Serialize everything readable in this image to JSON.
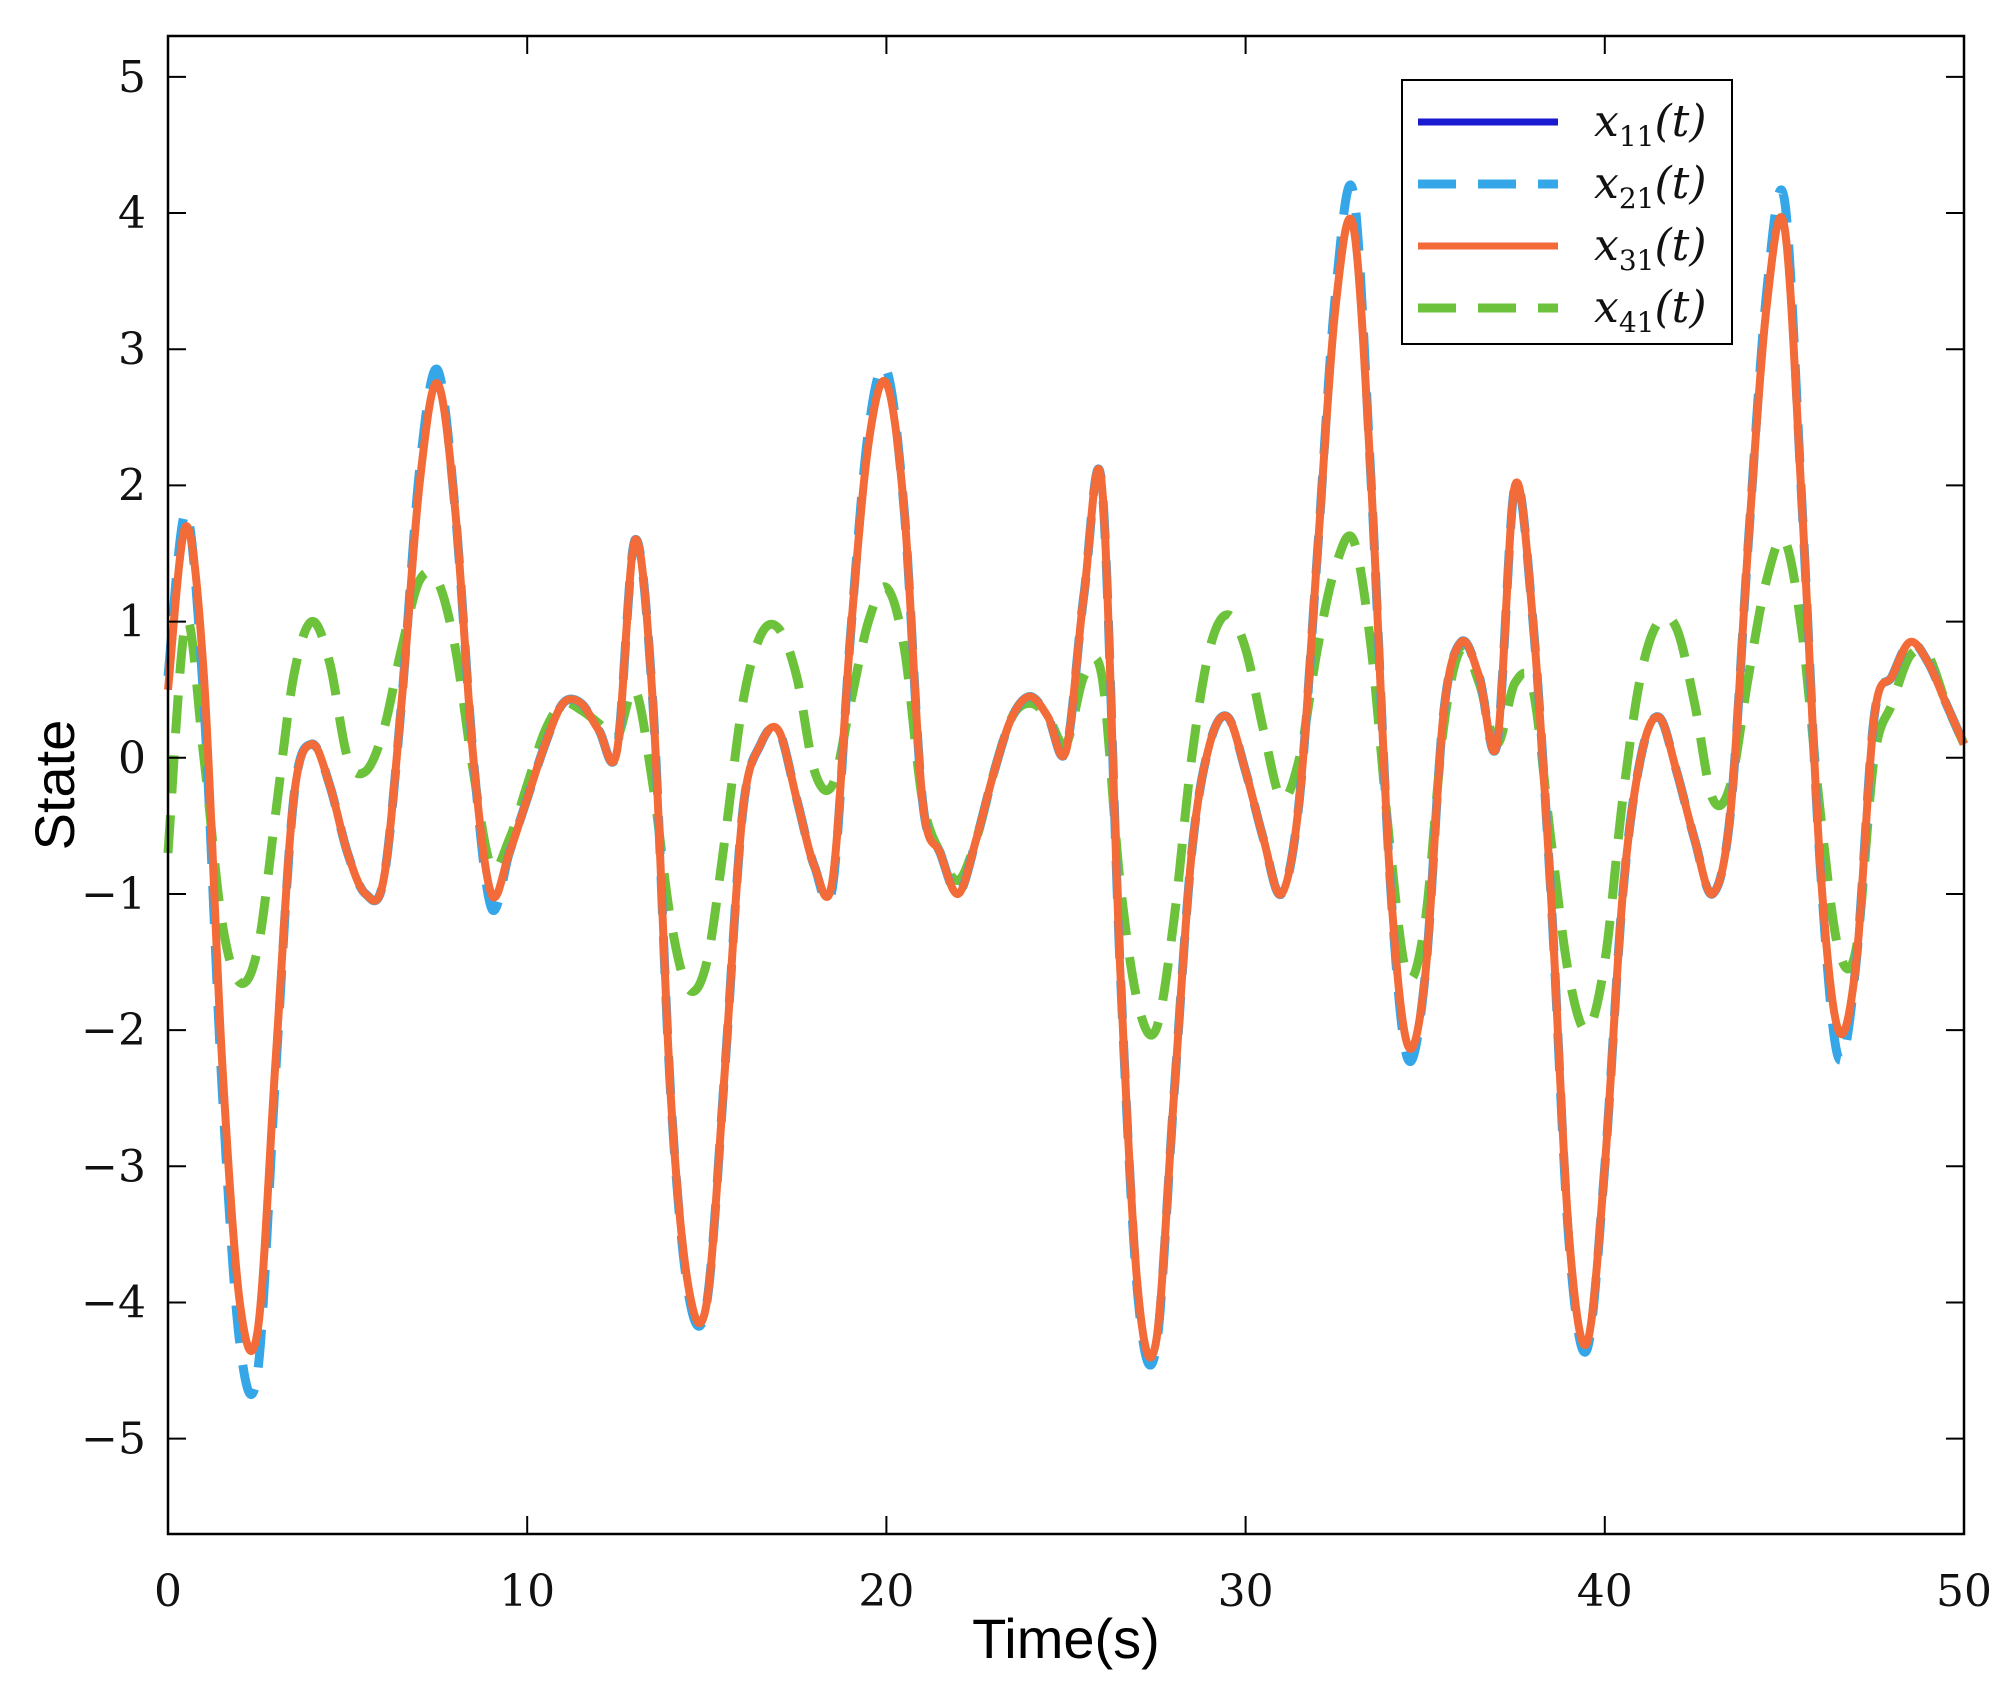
{
  "chart_data": {
    "type": "line",
    "title": "",
    "xlabel": "Time(s)",
    "ylabel": "State",
    "xlim": [
      0,
      50
    ],
    "ylim": [
      -5.7,
      5.3
    ],
    "xticks": [
      0,
      10,
      20,
      30,
      40,
      50
    ],
    "xtick_labels": [
      "0",
      "10",
      "20",
      "30",
      "40",
      "50"
    ],
    "yticks": [
      5,
      4,
      3,
      2,
      1,
      0,
      -1,
      -2,
      -3,
      -4,
      -5
    ],
    "ytick_labels": [
      "5",
      "4",
      "3",
      "2",
      "1",
      "0",
      "−1",
      "−2",
      "−3",
      "−4",
      "−5"
    ],
    "grid": false,
    "legend_position": "top-right",
    "x": [
      0,
      0.5,
      1,
      1.5,
      2,
      2.5,
      3,
      3.5,
      4,
      4.5,
      5,
      5.5,
      6,
      6.5,
      7,
      7.5,
      8,
      8.5,
      9,
      9.5,
      10,
      10.5,
      11,
      11.5,
      12,
      12.5,
      13,
      13.5,
      14,
      14.5,
      15,
      15.5,
      16,
      16.5,
      17,
      17.5,
      18,
      18.5,
      19,
      19.5,
      20,
      20.5,
      21,
      21.5,
      22,
      22.5,
      23,
      23.5,
      24,
      24.5,
      25,
      25.5,
      26,
      26.5,
      27,
      27.5,
      28,
      28.5,
      29,
      29.5,
      30,
      30.5,
      31,
      31.5,
      32,
      32.5,
      33,
      33.5,
      34,
      34.5,
      35,
      35.5,
      36,
      36.5,
      37,
      37.5,
      38,
      38.5,
      39,
      39.5,
      40,
      40.5,
      41,
      41.5,
      42,
      42.5,
      43,
      43.5,
      44,
      44.5,
      45,
      45.5,
      46,
      46.5,
      47,
      47.5,
      48,
      48.5,
      49,
      49.5,
      50
    ],
    "series": [
      {
        "name": "x11(t)",
        "label_main": "x",
        "label_sub": "11",
        "label_tail": "(t)",
        "color": "#1a1ad0",
        "style": "solid",
        "values": [
          0.5,
          1.7,
          0.6,
          -2.2,
          -4.0,
          -4.2,
          -2.2,
          -0.3,
          0.1,
          -0.2,
          -0.7,
          -1.0,
          -0.9,
          0.4,
          2.0,
          2.75,
          1.8,
          0.0,
          -1.0,
          -0.7,
          -0.3,
          0.1,
          0.4,
          0.4,
          0.2,
          0.05,
          1.6,
          0.4,
          -2.5,
          -3.9,
          -4.0,
          -2.3,
          -0.4,
          0.1,
          0.2,
          -0.3,
          -0.8,
          -0.9,
          0.9,
          2.3,
          2.75,
          1.8,
          -0.3,
          -0.7,
          -1.0,
          -0.6,
          -0.1,
          0.3,
          0.45,
          0.3,
          0.05,
          1.2,
          2.0,
          -1.5,
          -3.9,
          -4.3,
          -2.5,
          -0.7,
          0.1,
          0.3,
          -0.1,
          -0.6,
          -1.0,
          -0.3,
          1.5,
          3.3,
          3.9,
          2.0,
          -0.8,
          -2.1,
          -1.6,
          0.3,
          0.85,
          0.6,
          0.1,
          2.0,
          1.0,
          -1.0,
          -3.5,
          -4.3,
          -3.0,
          -1.0,
          0.0,
          0.3,
          -0.1,
          -0.6,
          -1.0,
          -0.4,
          1.6,
          3.3,
          3.9,
          1.8,
          -0.8,
          -2.0,
          -1.5,
          0.3,
          0.6,
          0.85,
          0.7,
          0.4,
          0.1
        ]
      },
      {
        "name": "x21(t)",
        "label_main": "x",
        "label_sub": "21",
        "label_tail": "(t)",
        "color": "#35a7e8",
        "style": "dashed",
        "values": [
          0.6,
          1.8,
          0.4,
          -2.4,
          -4.3,
          -4.5,
          -2.3,
          -0.3,
          0.1,
          -0.2,
          -0.7,
          -1.0,
          -0.9,
          0.4,
          2.1,
          2.85,
          1.8,
          0.0,
          -1.1,
          -0.7,
          -0.3,
          0.1,
          0.4,
          0.4,
          0.2,
          0.05,
          1.6,
          0.4,
          -2.5,
          -3.95,
          -4.0,
          -2.3,
          -0.4,
          0.1,
          0.2,
          -0.3,
          -0.8,
          -0.95,
          0.9,
          2.4,
          2.85,
          1.8,
          -0.3,
          -0.7,
          -1.0,
          -0.6,
          -0.1,
          0.3,
          0.45,
          0.3,
          0.05,
          1.2,
          2.0,
          -1.5,
          -3.95,
          -4.35,
          -2.5,
          -0.7,
          0.1,
          0.3,
          -0.1,
          -0.6,
          -1.0,
          -0.3,
          1.5,
          3.4,
          4.15,
          2.0,
          -0.8,
          -2.2,
          -1.6,
          0.3,
          0.85,
          0.6,
          0.1,
          2.0,
          1.0,
          -1.0,
          -3.55,
          -4.35,
          -3.0,
          -1.0,
          0.0,
          0.3,
          -0.1,
          -0.6,
          -1.0,
          -0.4,
          1.6,
          3.4,
          4.1,
          1.8,
          -0.8,
          -2.2,
          -1.5,
          0.3,
          0.6,
          0.85,
          0.7,
          0.4,
          0.1
        ]
      },
      {
        "name": "x31(t)",
        "label_main": "x",
        "label_sub": "31",
        "label_tail": "(t)",
        "color": "#f26b38",
        "style": "solid",
        "values": [
          0.5,
          1.7,
          0.6,
          -2.2,
          -4.0,
          -4.2,
          -2.2,
          -0.3,
          0.1,
          -0.2,
          -0.7,
          -1.0,
          -0.9,
          0.4,
          2.0,
          2.75,
          1.8,
          0.0,
          -1.0,
          -0.7,
          -0.3,
          0.1,
          0.4,
          0.4,
          0.2,
          0.05,
          1.6,
          0.4,
          -2.5,
          -3.9,
          -4.0,
          -2.3,
          -0.4,
          0.1,
          0.2,
          -0.3,
          -0.8,
          -0.9,
          0.9,
          2.3,
          2.75,
          1.8,
          -0.3,
          -0.7,
          -1.0,
          -0.6,
          -0.1,
          0.3,
          0.45,
          0.3,
          0.05,
          1.2,
          2.0,
          -1.5,
          -3.9,
          -4.3,
          -2.5,
          -0.7,
          0.1,
          0.3,
          -0.1,
          -0.6,
          -1.0,
          -0.3,
          1.5,
          3.3,
          3.9,
          2.0,
          -0.8,
          -2.1,
          -1.6,
          0.3,
          0.85,
          0.6,
          0.1,
          2.0,
          1.0,
          -1.0,
          -3.5,
          -4.3,
          -3.0,
          -1.0,
          0.0,
          0.3,
          -0.1,
          -0.6,
          -1.0,
          -0.4,
          1.6,
          3.3,
          3.9,
          1.8,
          -0.8,
          -2.0,
          -1.5,
          0.3,
          0.6,
          0.85,
          0.7,
          0.4,
          0.1
        ]
      },
      {
        "name": "x41(t)",
        "label_main": "x",
        "label_sub": "41",
        "label_tail": "(t)",
        "color": "#6cc33b",
        "style": "dashed",
        "values": [
          -0.7,
          1.0,
          0.0,
          -1.2,
          -1.65,
          -1.4,
          -0.4,
          0.6,
          1.0,
          0.7,
          0.0,
          -0.1,
          0.2,
          0.8,
          1.3,
          1.3,
          0.8,
          -0.1,
          -0.8,
          -0.6,
          -0.2,
          0.2,
          0.4,
          0.35,
          0.25,
          0.15,
          0.5,
          -0.2,
          -1.2,
          -1.7,
          -1.5,
          -0.6,
          0.4,
          0.9,
          0.95,
          0.6,
          -0.1,
          -0.2,
          0.4,
          1.0,
          1.25,
          0.8,
          -0.3,
          -0.7,
          -0.9,
          -0.6,
          -0.1,
          0.3,
          0.4,
          0.3,
          0.1,
          0.6,
          0.6,
          -0.9,
          -1.8,
          -2.0,
          -1.2,
          0.0,
          0.8,
          1.05,
          0.8,
          0.2,
          -0.3,
          0.0,
          0.8,
          1.4,
          1.6,
          0.8,
          -0.6,
          -1.6,
          -1.2,
          0.2,
          0.8,
          0.55,
          0.1,
          0.55,
          0.5,
          -0.6,
          -1.6,
          -2.0,
          -1.5,
          -0.3,
          0.6,
          1.0,
          0.95,
          0.4,
          -0.3,
          -0.2,
          0.6,
          1.3,
          1.6,
          0.9,
          -0.4,
          -1.4,
          -1.4,
          0.0,
          0.4,
          0.75,
          0.75,
          0.4,
          0.1
        ]
      }
    ]
  }
}
